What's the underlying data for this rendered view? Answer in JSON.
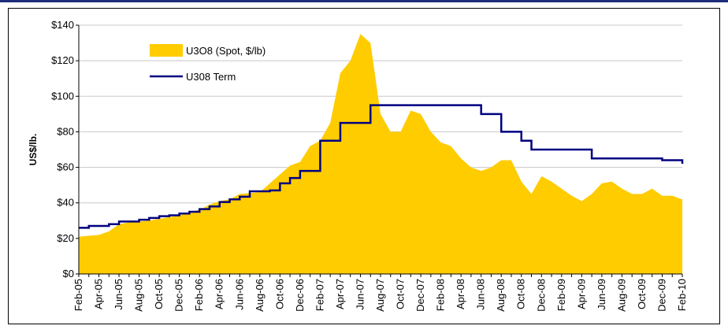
{
  "chart_data": {
    "type": "area-step",
    "y_label": "US$/lb.",
    "categories": [
      "Feb-05",
      null,
      "Apr-05",
      null,
      "Jun-05",
      null,
      "Aug-05",
      null,
      "Oct-05",
      null,
      "Dec-05",
      null,
      "Feb-06",
      null,
      "Apr-06",
      null,
      "Jun-06",
      null,
      "Aug-06",
      null,
      "Oct-06",
      null,
      "Dec-06",
      null,
      "Feb-07",
      null,
      "Apr-07",
      null,
      "Jun-07",
      null,
      "Aug-07",
      null,
      "Oct-07",
      null,
      "Dec-07",
      null,
      "Feb-08",
      null,
      "Apr-08",
      null,
      "Jun-08",
      null,
      "Aug-08",
      null,
      "Oct-08",
      null,
      "Dec-08",
      null,
      "Feb-09",
      null,
      "Apr-09",
      null,
      "Jun-09",
      null,
      "Aug-09",
      null,
      "Oct-09",
      null,
      "Dec-09",
      null,
      "Feb-10"
    ],
    "series": [
      {
        "name": "U3O8 (Spot, $/lb)",
        "type": "area",
        "color": "#FFCC00",
        "values": [
          21,
          21.5,
          22,
          24,
          28,
          29,
          29.5,
          30,
          31,
          32,
          33,
          35,
          36,
          39,
          41,
          42,
          45,
          45.5,
          46,
          51,
          56,
          61,
          63,
          72,
          75,
          85,
          113,
          120,
          135,
          130,
          90,
          80,
          80,
          92,
          90,
          80,
          74,
          72,
          65,
          60,
          58,
          60,
          64,
          64,
          52,
          45,
          55,
          52,
          48,
          44,
          41,
          45,
          51,
          52,
          48,
          45,
          45,
          48,
          44,
          44,
          42
        ]
      },
      {
        "name": "U308 Term",
        "type": "step",
        "color": "#000080",
        "values": [
          26,
          27,
          27,
          28,
          29.5,
          29.5,
          30.5,
          31.5,
          32.5,
          33,
          34,
          35,
          36.5,
          38,
          40.5,
          42,
          43.5,
          46.5,
          46.5,
          47,
          51,
          54,
          58,
          58,
          75,
          75,
          85,
          85,
          85,
          95,
          95,
          95,
          95,
          95,
          95,
          95,
          95,
          95,
          95,
          95,
          90,
          90,
          80,
          80,
          75,
          70,
          70,
          70,
          70,
          70,
          70,
          65,
          65,
          65,
          65,
          65,
          65,
          65,
          64,
          64,
          62
        ]
      }
    ],
    "ylim": [
      0,
      140
    ],
    "yticks": [
      {
        "value": 0,
        "label": "$0"
      },
      {
        "value": 20,
        "label": "$20"
      },
      {
        "value": 40,
        "label": "$40"
      },
      {
        "value": 60,
        "label": "$60"
      },
      {
        "value": 80,
        "label": "$80"
      },
      {
        "value": 100,
        "label": "$100"
      },
      {
        "value": 120,
        "label": "$120"
      },
      {
        "value": 140,
        "label": "$140"
      }
    ],
    "grid": true,
    "legend": "top-left"
  }
}
